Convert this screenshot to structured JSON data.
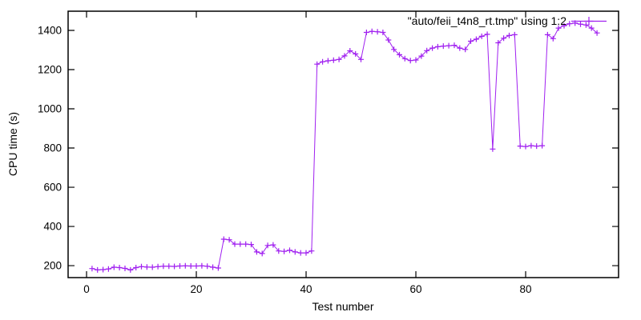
{
  "chart_data": {
    "type": "line",
    "marker": "plus",
    "title": "",
    "xlabel": "Test number",
    "ylabel": "CPU time (s)",
    "legend_label": "\"auto/feii_t4n8_rt.tmp\" using 1:2",
    "legend_position": "top-right-inside",
    "grid": false,
    "background_color": "#ffffff",
    "border_color": "#000000",
    "line_color": "#a020f0",
    "x_ticks": [
      0,
      20,
      40,
      60,
      80
    ],
    "y_ticks": [
      200,
      400,
      600,
      800,
      1000,
      1200,
      1400
    ],
    "xlim": [
      -3.36,
      96.93
    ],
    "ylim": [
      139,
      1498
    ],
    "series": [
      {
        "name": "\"auto/feii_t4n8_rt.tmp\" using 1:2",
        "color": "#a020f0",
        "x_start": 1,
        "x_step": 1,
        "values": [
          185,
          178,
          180,
          183,
          192,
          190,
          186,
          178,
          190,
          195,
          193,
          192,
          195,
          197,
          197,
          196,
          198,
          199,
          198,
          198,
          199,
          197,
          192,
          188,
          335,
          332,
          310,
          310,
          310,
          308,
          270,
          262,
          303,
          306,
          275,
          273,
          278,
          270,
          265,
          265,
          275,
          1228,
          1240,
          1245,
          1248,
          1252,
          1270,
          1296,
          1280,
          1252,
          1390,
          1395,
          1393,
          1390,
          1351,
          1303,
          1276,
          1256,
          1246,
          1249,
          1269,
          1297,
          1310,
          1317,
          1320,
          1322,
          1324,
          1310,
          1303,
          1345,
          1355,
          1370,
          1380,
          795,
          1337,
          1360,
          1374,
          1378,
          810,
          808,
          812,
          810,
          812,
          1378,
          1358,
          1412,
          1424,
          1434,
          1437,
          1432,
          1428,
          1412,
          1387
        ]
      }
    ]
  }
}
